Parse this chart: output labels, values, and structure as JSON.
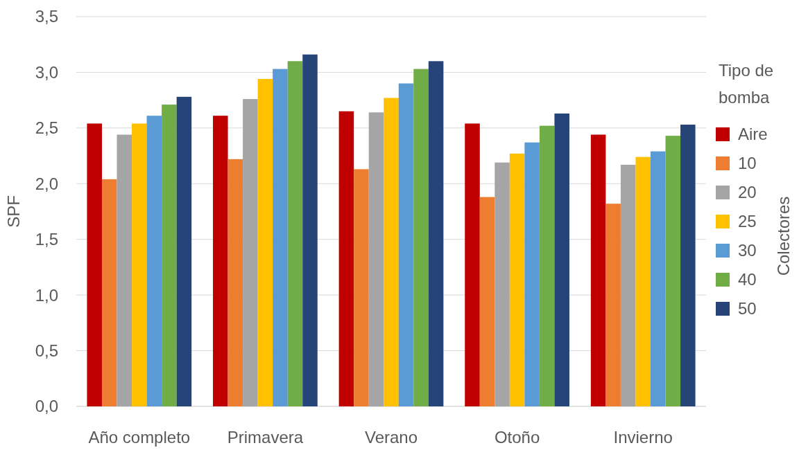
{
  "chart_data": {
    "type": "bar",
    "ylabel": "SPF",
    "legend_title": "Tipo de bomba",
    "annotations": [
      "Colectores"
    ],
    "categories": [
      "Año completo",
      "Primavera",
      "Verano",
      "Otoño",
      "Invierno"
    ],
    "series": [
      {
        "name": "Aire",
        "color": "#c00000",
        "values": [
          2.54,
          2.61,
          2.65,
          2.54,
          2.44
        ]
      },
      {
        "name": "10",
        "color": "#ed7d31",
        "values": [
          2.04,
          2.22,
          2.13,
          1.88,
          1.82
        ]
      },
      {
        "name": "20",
        "color": "#a5a5a5",
        "values": [
          2.44,
          2.76,
          2.64,
          2.19,
          2.17
        ]
      },
      {
        "name": "25",
        "color": "#ffc000",
        "values": [
          2.54,
          2.94,
          2.77,
          2.27,
          2.24
        ]
      },
      {
        "name": "30",
        "color": "#5b9bd5",
        "values": [
          2.61,
          3.03,
          2.9,
          2.37,
          2.29
        ]
      },
      {
        "name": "40",
        "color": "#70ad47",
        "values": [
          2.71,
          3.1,
          3.03,
          2.52,
          2.43
        ]
      },
      {
        "name": "50",
        "color": "#264478",
        "values": [
          2.78,
          3.16,
          3.1,
          2.63,
          2.53
        ]
      }
    ],
    "ylim": [
      0,
      3.5
    ],
    "yticks": [
      {
        "value": 0,
        "label": "0,0"
      },
      {
        "value": 0.5,
        "label": "0,5"
      },
      {
        "value": 1,
        "label": "1,0"
      },
      {
        "value": 1.5,
        "label": "1,5"
      },
      {
        "value": 2,
        "label": "2,0"
      },
      {
        "value": 2.5,
        "label": "2,5"
      },
      {
        "value": 3,
        "label": "3,0"
      },
      {
        "value": 3.5,
        "label": "3,5"
      }
    ],
    "grid": "y",
    "legend": "right"
  }
}
